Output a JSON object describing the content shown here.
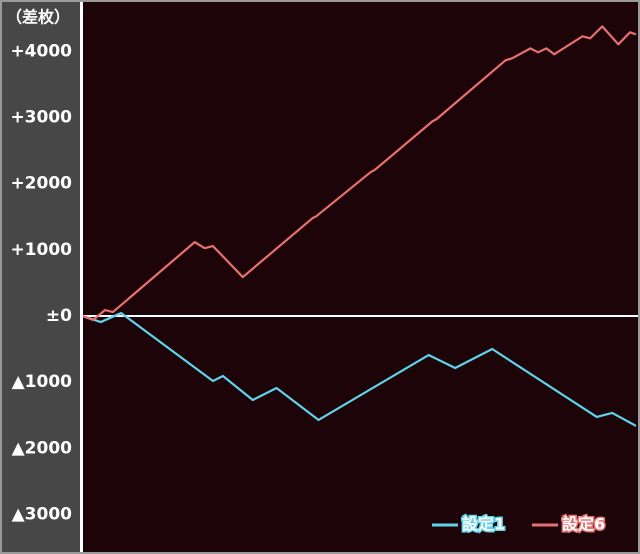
{
  "chart_data": {
    "type": "line",
    "y_label": "（差枚）",
    "ylim": [
      -3520,
      4700
    ],
    "xlim": [
      0,
      100
    ],
    "yticks": [
      {
        "value": 4000,
        "label": "+4000"
      },
      {
        "value": 3000,
        "label": "+3000"
      },
      {
        "value": 2000,
        "label": "+2000"
      },
      {
        "value": 1000,
        "label": "+1000"
      },
      {
        "value": 0,
        "label": "±0"
      },
      {
        "value": -1000,
        "label": "▲1000"
      },
      {
        "value": -2000,
        "label": "▲2000"
      },
      {
        "value": -3000,
        "label": "▲3000"
      }
    ],
    "legend": "lower right",
    "series": [
      {
        "name": "設定1",
        "color": "#5fd3ea",
        "x": [
          0,
          3.2,
          6.9,
          23.5,
          25.3,
          30.7,
          35.0,
          42.6,
          62.5,
          67.3,
          74.0,
          92.9,
          95.7,
          100
        ],
        "values": [
          0,
          -91,
          45,
          -981,
          -906,
          -1268,
          -1087,
          -1570,
          -589,
          -785,
          -498,
          -1525,
          -1464,
          -1660
        ]
      },
      {
        "name": "設定6",
        "color": "#e8706e",
        "x": [
          0,
          1.8,
          4.0,
          5.4,
          20.2,
          22.0,
          23.5,
          28.9,
          41.5,
          42.2,
          52.0,
          52.7,
          63.2,
          63.9,
          76.4,
          77.6,
          80.9,
          82.3,
          83.8,
          85.2,
          90.3,
          91.7,
          93.9,
          96.8,
          98.9,
          100
        ],
        "values": [
          0,
          -60,
          91,
          60,
          1117,
          1026,
          1057,
          589,
          1479,
          1509,
          2174,
          2204,
          2943,
          2974,
          3864,
          3894,
          4045,
          3985,
          4045,
          3955,
          4226,
          4196,
          4377,
          4106,
          4287,
          4257
        ]
      }
    ]
  }
}
